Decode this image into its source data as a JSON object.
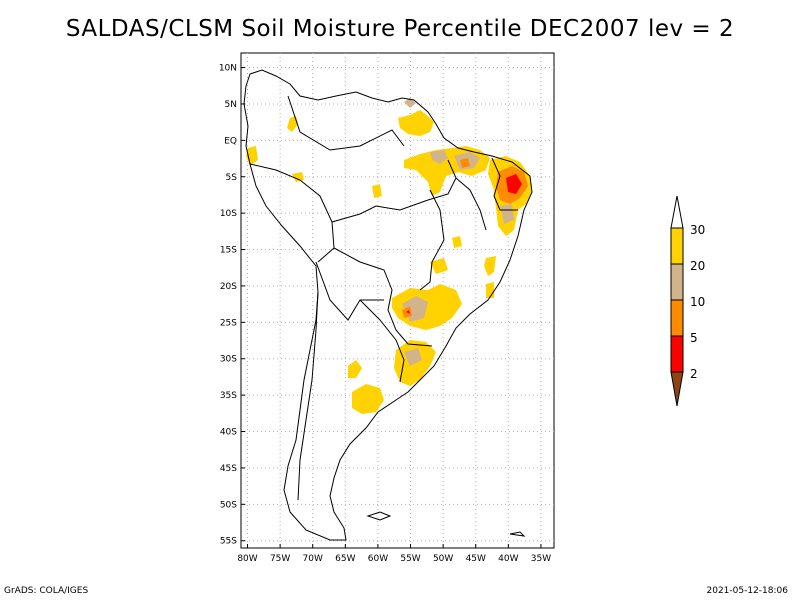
{
  "title": "SALDAS/CLSM Soil Moisture Percentile DEC2007 lev = 2",
  "footer": {
    "left": "GrADS: COLA/IGES",
    "right": "2021-05-12-18:06"
  },
  "map": {
    "lat_labels": [
      "10N",
      "5N",
      "EQ",
      "5S",
      "10S",
      "15S",
      "20S",
      "25S",
      "30S",
      "35S",
      "40S",
      "45S",
      "50S",
      "55S"
    ],
    "lon_labels": [
      "80W",
      "75W",
      "70W",
      "65W",
      "60W",
      "55W",
      "50W",
      "45W",
      "40W",
      "35W"
    ],
    "lon_values": [
      -80,
      -75,
      -70,
      -65,
      -60,
      -55,
      -50,
      -45,
      -40,
      -35
    ],
    "lat_values": [
      10,
      5,
      0,
      -5,
      -10,
      -15,
      -20,
      -25,
      -30,
      -35,
      -40,
      -45,
      -50,
      -55
    ],
    "lon_range": [
      -81,
      -33
    ],
    "lat_range": [
      -56,
      12
    ]
  },
  "legend": {
    "labels": [
      "30",
      "20",
      "10",
      "5",
      "2"
    ],
    "colors": {
      "above_30": "#ffffff",
      "c20_30": "#ffd200",
      "c10_20": "#d2b48c",
      "c5_10": "#ff8c00",
      "c2_5": "#ff0000",
      "below_2": "#8b4513"
    }
  },
  "colors": {
    "gridline": "#b4b4b4",
    "coast": "#000000"
  }
}
